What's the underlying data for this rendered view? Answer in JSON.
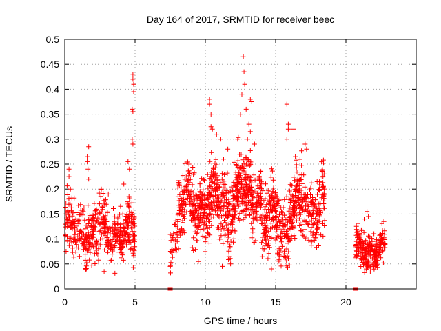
{
  "chart_data": {
    "type": "scatter",
    "title": "Day 164 of 2017, SRMTID for receiver beec",
    "xlabel": "GPS time / hours",
    "ylabel": "SRMTID / TECUs",
    "xlim": [
      0,
      25
    ],
    "ylim": [
      0,
      0.5
    ],
    "xticks": [
      0,
      5,
      10,
      15,
      20
    ],
    "yticks": [
      0,
      0.05,
      0.1,
      0.15,
      0.2,
      0.25,
      0.3,
      0.35,
      0.4,
      0.45,
      0.5
    ],
    "xtick_labels": [
      "0",
      "5",
      "10",
      "15",
      "20"
    ],
    "ytick_labels": [
      "0",
      "0.05",
      "0.1",
      "0.15",
      "0.2",
      "0.25",
      "0.3",
      "0.35",
      "0.4",
      "0.45",
      "0.5"
    ],
    "grid": true,
    "marker": "+",
    "color": "#ff0000",
    "segments": [
      {
        "x_start": 0.0,
        "x_end": 5.0,
        "count": 520,
        "base": 0.115,
        "spread": 0.035
      },
      {
        "x_start": 7.5,
        "x_end": 8.0,
        "count": 30,
        "base": 0.095,
        "spread": 0.025
      },
      {
        "x_start": 8.0,
        "x_end": 10.0,
        "count": 260,
        "base": 0.165,
        "spread": 0.04
      },
      {
        "x_start": 10.0,
        "x_end": 12.0,
        "count": 260,
        "base": 0.165,
        "spread": 0.045
      },
      {
        "x_start": 12.0,
        "x_end": 14.0,
        "count": 260,
        "base": 0.19,
        "spread": 0.045
      },
      {
        "x_start": 14.0,
        "x_end": 16.0,
        "count": 240,
        "base": 0.13,
        "spread": 0.045
      },
      {
        "x_start": 16.0,
        "x_end": 18.5,
        "count": 280,
        "base": 0.165,
        "spread": 0.045
      },
      {
        "x_start": 20.7,
        "x_end": 22.8,
        "count": 260,
        "base": 0.08,
        "spread": 0.022
      }
    ],
    "outliers": [
      {
        "x": 0.3,
        "y": 0.24
      },
      {
        "x": 0.3,
        "y": 0.225
      },
      {
        "x": 0.4,
        "y": 0.2
      },
      {
        "x": 1.6,
        "y": 0.265
      },
      {
        "x": 1.6,
        "y": 0.255
      },
      {
        "x": 1.7,
        "y": 0.285
      },
      {
        "x": 1.65,
        "y": 0.24
      },
      {
        "x": 1.7,
        "y": 0.22
      },
      {
        "x": 2.6,
        "y": 0.2
      },
      {
        "x": 3.1,
        "y": 0.19
      },
      {
        "x": 4.5,
        "y": 0.255
      },
      {
        "x": 4.6,
        "y": 0.24
      },
      {
        "x": 4.2,
        "y": 0.21
      },
      {
        "x": 4.85,
        "y": 0.43
      },
      {
        "x": 4.85,
        "y": 0.42
      },
      {
        "x": 4.9,
        "y": 0.41
      },
      {
        "x": 4.9,
        "y": 0.395
      },
      {
        "x": 4.8,
        "y": 0.36
      },
      {
        "x": 4.85,
        "y": 0.355
      },
      {
        "x": 4.8,
        "y": 0.3
      },
      {
        "x": 4.85,
        "y": 0.29
      },
      {
        "x": 10.3,
        "y": 0.38
      },
      {
        "x": 10.3,
        "y": 0.37
      },
      {
        "x": 10.4,
        "y": 0.35
      },
      {
        "x": 10.4,
        "y": 0.325
      },
      {
        "x": 10.5,
        "y": 0.32
      },
      {
        "x": 10.8,
        "y": 0.31
      },
      {
        "x": 11.1,
        "y": 0.3
      },
      {
        "x": 11.6,
        "y": 0.28
      },
      {
        "x": 11.3,
        "y": 0.26
      },
      {
        "x": 12.7,
        "y": 0.465
      },
      {
        "x": 12.75,
        "y": 0.435
      },
      {
        "x": 12.8,
        "y": 0.41
      },
      {
        "x": 12.6,
        "y": 0.39
      },
      {
        "x": 12.9,
        "y": 0.36
      },
      {
        "x": 13.2,
        "y": 0.38
      },
      {
        "x": 13.3,
        "y": 0.375
      },
      {
        "x": 12.5,
        "y": 0.35
      },
      {
        "x": 13.1,
        "y": 0.33
      },
      {
        "x": 13.2,
        "y": 0.315
      },
      {
        "x": 13.0,
        "y": 0.3
      },
      {
        "x": 12.3,
        "y": 0.3
      },
      {
        "x": 13.5,
        "y": 0.29
      },
      {
        "x": 15.8,
        "y": 0.37
      },
      {
        "x": 15.9,
        "y": 0.33
      },
      {
        "x": 15.9,
        "y": 0.32
      },
      {
        "x": 16.3,
        "y": 0.32
      },
      {
        "x": 15.8,
        "y": 0.3
      },
      {
        "x": 17.1,
        "y": 0.29
      },
      {
        "x": 17.2,
        "y": 0.28
      },
      {
        "x": 16.4,
        "y": 0.265
      },
      {
        "x": 7.5,
        "y": 0.045
      },
      {
        "x": 9.5,
        "y": 0.055
      },
      {
        "x": 11.2,
        "y": 0.045
      },
      {
        "x": 14.7,
        "y": 0.04
      },
      {
        "x": 2.8,
        "y": 0.035
      },
      {
        "x": 1.5,
        "y": 0.04
      },
      {
        "x": 21.5,
        "y": 0.155
      },
      {
        "x": 21.6,
        "y": 0.145
      },
      {
        "x": 22.7,
        "y": 0.135
      },
      {
        "x": 21.3,
        "y": 0.14
      }
    ],
    "zero_points": [
      {
        "x": 7.45,
        "y": 0.0
      },
      {
        "x": 7.5,
        "y": 0.0
      },
      {
        "x": 7.55,
        "y": 0.0
      },
      {
        "x": 20.65,
        "y": 0.0
      },
      {
        "x": 20.7,
        "y": 0.0
      },
      {
        "x": 20.75,
        "y": 0.0
      }
    ]
  }
}
